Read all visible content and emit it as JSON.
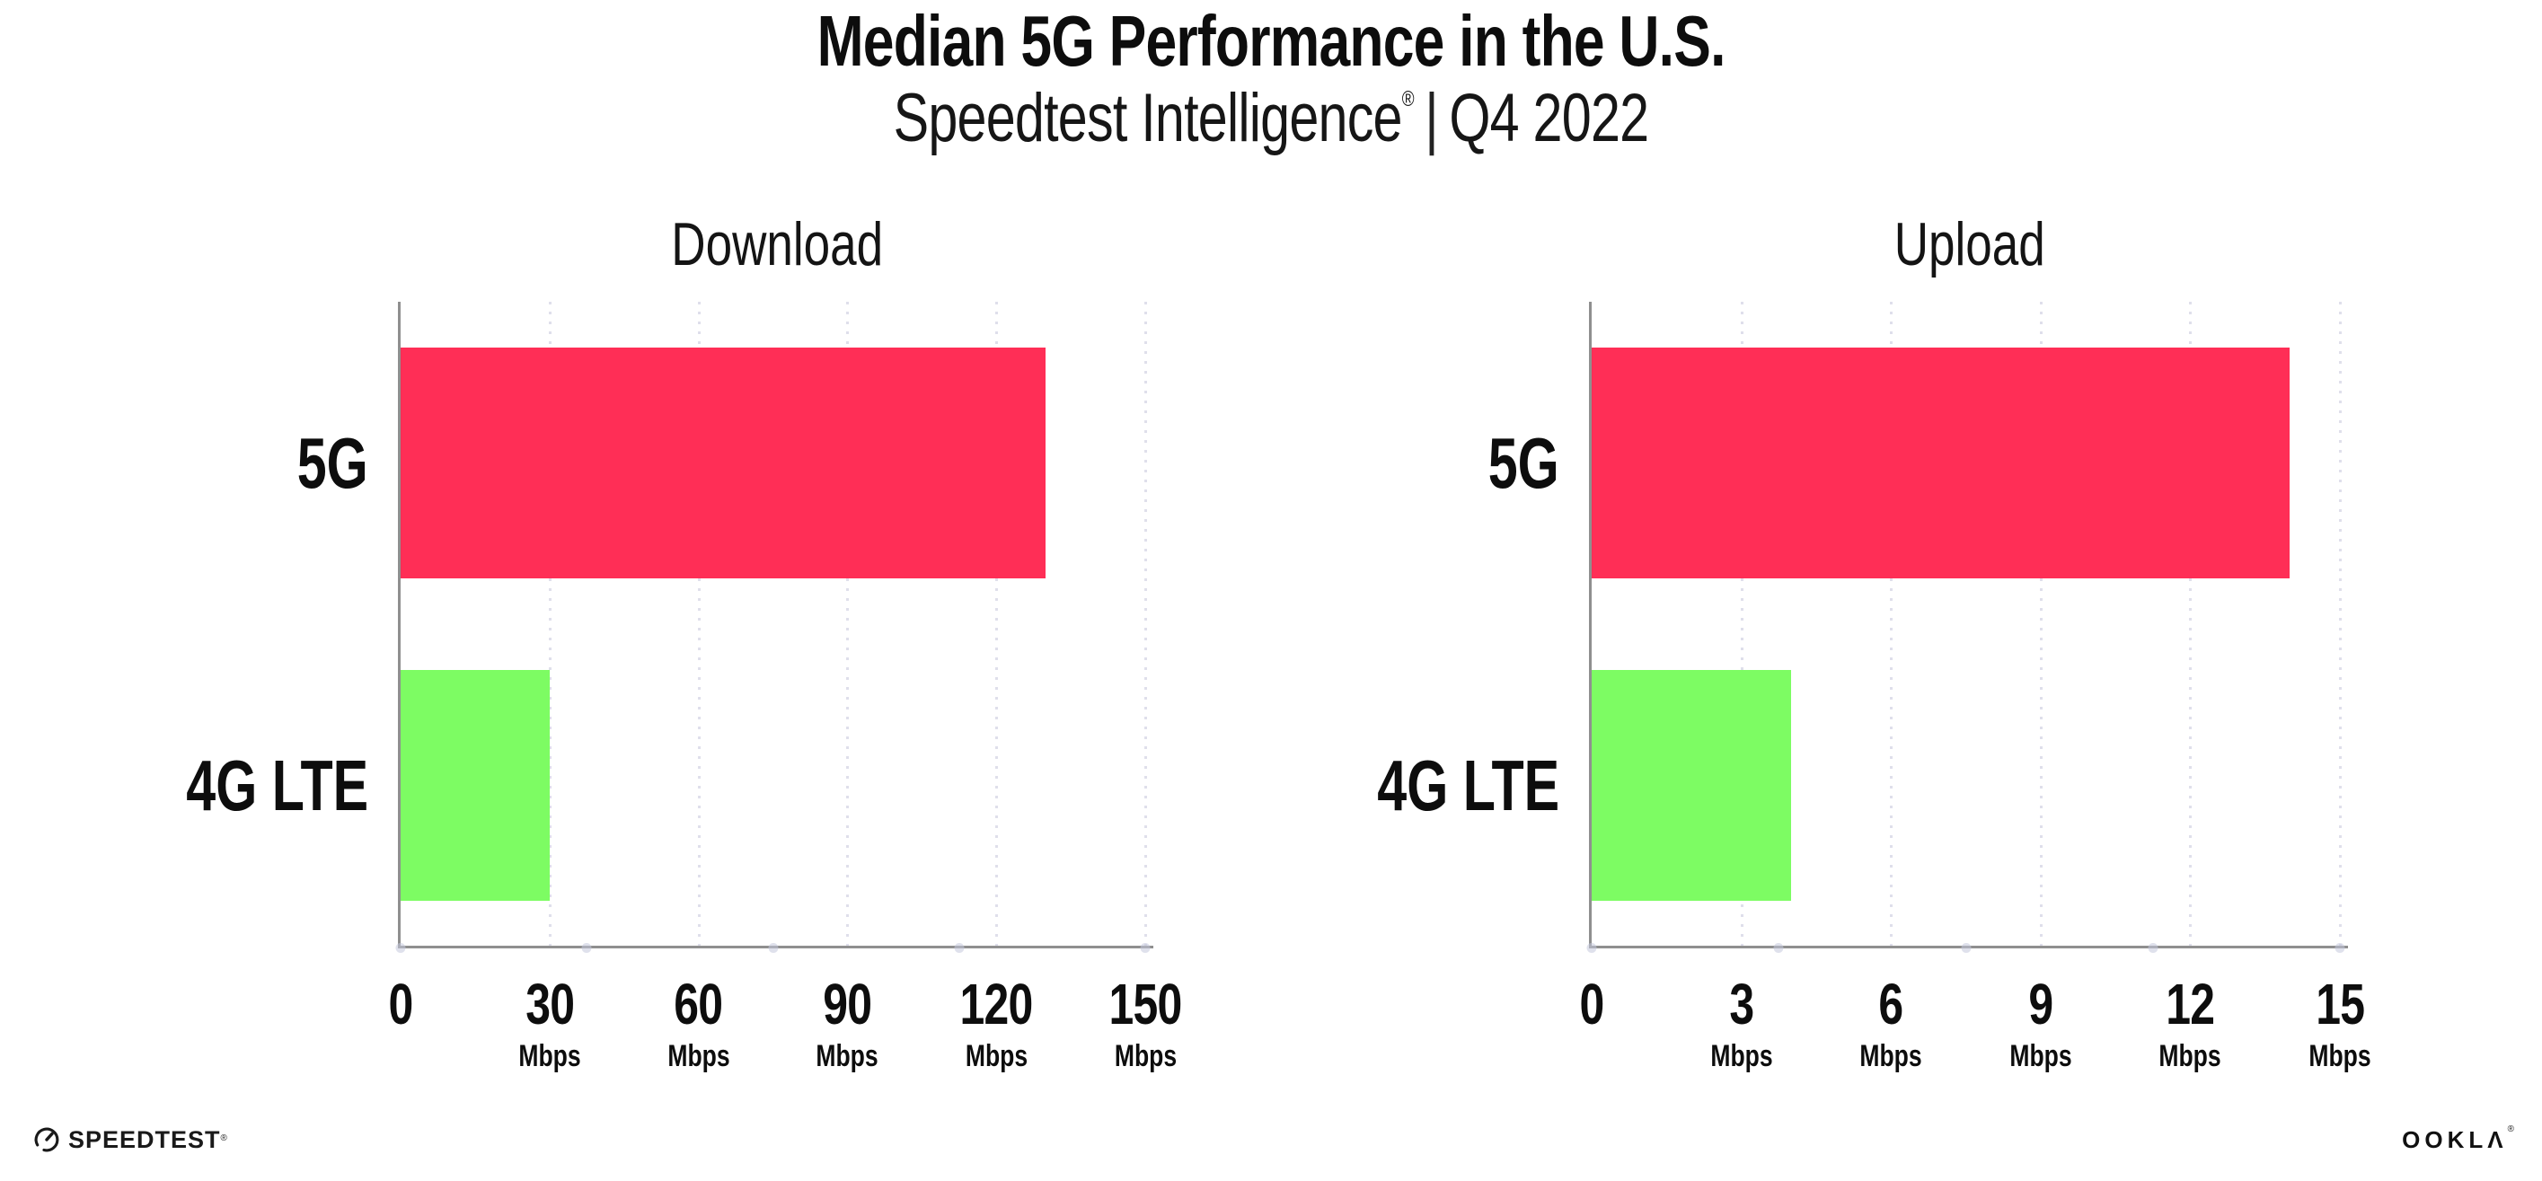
{
  "title": "Median 5G Performance in the U.S.",
  "subtitle": {
    "brand": "Speedtest Intelligence",
    "registered_mark": "®",
    "separator": "|",
    "period": "Q4 2022"
  },
  "footer": {
    "speedtest_label": "SPEEDTEST",
    "speedtest_mark": "®",
    "ookla_label": "OOKLΛ",
    "ookla_mark": "®"
  },
  "colors": {
    "bar_5g": "#ff2e56",
    "bar_4g_lte": "#7dfc63",
    "axis": "#8f8f8f",
    "gridline": "#dfdfeb",
    "axis_dot": "#c5c8dc",
    "text": "#0d0d0d"
  },
  "chart_data": [
    {
      "type": "bar",
      "orientation": "horizontal",
      "title": "Download",
      "categories": [
        "5G",
        "4G LTE"
      ],
      "values": [
        130,
        30
      ],
      "unit": "Mbps",
      "xlim": [
        0,
        150
      ],
      "xticks": [
        0,
        30,
        60,
        90,
        120,
        150
      ],
      "bar_colors": [
        "#ff2e56",
        "#7dfc63"
      ],
      "grid": "dotted vertical gridlines at each tick",
      "legend": "none"
    },
    {
      "type": "bar",
      "orientation": "horizontal",
      "title": "Upload",
      "categories": [
        "5G",
        "4G LTE"
      ],
      "values": [
        14,
        4
      ],
      "unit": "Mbps",
      "xlim": [
        0,
        15
      ],
      "xticks": [
        0,
        3,
        6,
        9,
        12,
        15
      ],
      "bar_colors": [
        "#ff2e56",
        "#7dfc63"
      ],
      "grid": "dotted vertical gridlines at each tick",
      "legend": "none"
    }
  ]
}
